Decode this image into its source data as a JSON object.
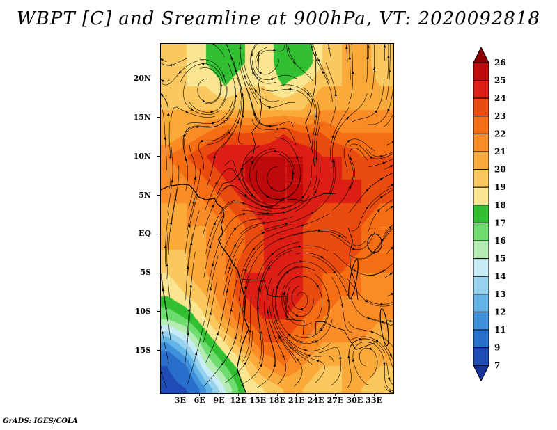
{
  "title": "WBPT [C] and Sreamline at 900hPa, VT: 2020092818",
  "credit": "GrADS: IGES/COLA",
  "chart_data": {
    "type": "heatmap",
    "field": "wet-bulb potential temperature (WBPT)",
    "units": "C",
    "level_hPa": 900,
    "valid_time": "2020092818",
    "overlay": "streamlines (900 hPa wind)",
    "lon_range": [
      0,
      36
    ],
    "lat_range": [
      -20.5,
      24.5
    ],
    "x_ticks": {
      "values": [
        3,
        6,
        9,
        12,
        15,
        18,
        21,
        24,
        27,
        30,
        33
      ],
      "labels": [
        "3E",
        "6E",
        "9E",
        "12E",
        "15E",
        "18E",
        "21E",
        "24E",
        "27E",
        "30E",
        "33E"
      ]
    },
    "y_ticks": {
      "values": [
        20,
        15,
        10,
        5,
        0,
        -5,
        -10,
        -15
      ],
      "labels": [
        "20N",
        "15N",
        "10N",
        "5N",
        "EQ",
        "5S",
        "10S",
        "15S"
      ]
    },
    "colorbar": {
      "boundaries": [
        7,
        9,
        11,
        12,
        13,
        14,
        15,
        16,
        17,
        18,
        19,
        20,
        21,
        22,
        23,
        24,
        25,
        26
      ],
      "labels_top_to_bottom": [
        "26",
        "25",
        "24",
        "23",
        "22",
        "21",
        "20",
        "19",
        "18",
        "17",
        "16",
        "15",
        "14",
        "13",
        "12",
        "11",
        "9",
        "7"
      ],
      "band_colors_low_to_high": [
        "#16329b",
        "#1e4cb4",
        "#2a6ecb",
        "#3f90da",
        "#64b4e6",
        "#96d2ee",
        "#c8ecf5",
        "#b4ecb4",
        "#6fdc6f",
        "#32c032",
        "#fae691",
        "#fac85f",
        "#faaa3a",
        "#fa8c28",
        "#f56e14",
        "#ea4b0f",
        "#dc1e14",
        "#be0a0a",
        "#8c0000"
      ]
    },
    "grid": {
      "note": "coarse estimate of shaded WBPT field read from the plot, degC",
      "lon": [
        1,
        4,
        7,
        10,
        13,
        16,
        19,
        22,
        25,
        28,
        31,
        34
      ],
      "lat": [
        22,
        19,
        16,
        13,
        10,
        7,
        4,
        1,
        -2,
        -5,
        -8,
        -11,
        -14,
        -17,
        -20
      ],
      "values": [
        [
          19,
          19,
          18,
          17,
          18,
          19,
          17,
          17,
          19,
          20,
          21,
          19
        ],
        [
          19,
          19,
          19,
          18,
          19,
          19,
          18,
          19,
          20,
          20,
          21,
          20
        ],
        [
          20,
          20,
          20,
          20,
          20,
          20,
          20,
          20,
          21,
          21,
          21,
          21
        ],
        [
          20,
          21,
          22,
          23,
          23,
          23,
          24,
          23,
          23,
          22,
          22,
          22
        ],
        [
          22,
          23,
          24,
          25,
          25,
          25,
          25,
          25,
          24,
          24,
          23,
          23
        ],
        [
          21,
          22,
          23,
          24,
          25,
          26,
          25,
          25,
          24,
          24,
          24,
          23
        ],
        [
          21,
          21,
          22,
          23,
          24,
          25,
          25,
          25,
          24,
          24,
          24,
          23
        ],
        [
          20,
          21,
          21,
          22,
          23,
          24,
          25,
          24,
          23,
          24,
          23,
          22
        ],
        [
          20,
          20,
          21,
          22,
          23,
          24,
          24,
          24,
          23,
          24,
          23,
          22
        ],
        [
          19,
          20,
          21,
          22,
          24,
          24,
          25,
          24,
          23,
          23,
          22,
          22
        ],
        [
          18,
          19,
          20,
          22,
          24,
          25,
          25,
          24,
          23,
          22,
          22,
          21
        ],
        [
          16,
          17,
          19,
          21,
          23,
          24,
          24,
          23,
          22,
          21,
          22,
          21
        ],
        [
          12,
          14,
          17,
          19,
          21,
          23,
          23,
          22,
          21,
          21,
          21,
          20
        ],
        [
          9,
          11,
          15,
          17,
          19,
          21,
          22,
          21,
          20,
          20,
          21,
          20
        ],
        [
          8,
          9,
          12,
          15,
          18,
          19,
          20,
          20,
          19,
          20,
          20,
          19
        ]
      ]
    },
    "map": {
      "coastline_lonlat": [
        [
          0,
          5.7
        ],
        [
          1.2,
          6.15
        ],
        [
          2.4,
          6.3
        ],
        [
          3.3,
          6.4
        ],
        [
          4.4,
          6.3
        ],
        [
          5.0,
          5.8
        ],
        [
          5.8,
          4.8
        ],
        [
          7.0,
          4.4
        ],
        [
          8.3,
          4.6
        ],
        [
          8.7,
          3.9
        ],
        [
          9.6,
          3.3
        ],
        [
          9.8,
          2.3
        ],
        [
          9.3,
          1.2
        ],
        [
          9.6,
          0.2
        ],
        [
          8.9,
          -0.7
        ],
        [
          9.4,
          -1.6
        ],
        [
          10.6,
          -2.9
        ],
        [
          11.2,
          -3.9
        ],
        [
          11.9,
          -4.7
        ],
        [
          12.3,
          -6.0
        ],
        [
          13.1,
          -8.6
        ],
        [
          12.9,
          -10.8
        ],
        [
          13.6,
          -12.2
        ],
        [
          12.6,
          -14.2
        ],
        [
          12.2,
          -15.6
        ],
        [
          11.8,
          -17.3
        ],
        [
          12.4,
          -18.9
        ],
        [
          13.2,
          -20.5
        ]
      ],
      "borders_lonlat": [
        [
          [
            8.6,
            4.9
          ],
          [
            9.6,
            6.5
          ],
          [
            11.0,
            6.8
          ],
          [
            12.0,
            7.6
          ],
          [
            12.8,
            8.9
          ],
          [
            14.2,
            9.9
          ],
          [
            14.6,
            11.6
          ],
          [
            14.1,
            13.1
          ],
          [
            15.3,
            14.4
          ],
          [
            15.6,
            16.4
          ],
          [
            15.0,
            20.0
          ],
          [
            15.2,
            23.5
          ]
        ],
        [
          [
            23.8,
            8.7
          ],
          [
            23.5,
            10.5
          ],
          [
            22.9,
            12.7
          ],
          [
            22.4,
            14.3
          ],
          [
            23.1,
            15.7
          ],
          [
            24.0,
            19.5
          ],
          [
            24.0,
            23.5
          ]
        ],
        [
          [
            16.1,
            3.6
          ],
          [
            17.4,
            3.6
          ],
          [
            18.6,
            4.3
          ],
          [
            20.6,
            4.5
          ],
          [
            22.2,
            4.2
          ],
          [
            23.4,
            4.6
          ],
          [
            25.3,
            5.2
          ],
          [
            27.1,
            5.2
          ]
        ],
        [
          [
            29.0,
            0.8
          ],
          [
            29.7,
            -0.9
          ],
          [
            29.2,
            -2.6
          ],
          [
            29.4,
            -4.4
          ],
          [
            30.3,
            -7.0
          ],
          [
            30.5,
            -8.5
          ]
        ],
        [
          [
            12.4,
            -5.8
          ],
          [
            14.0,
            -5.9
          ],
          [
            16.0,
            -6.0
          ],
          [
            16.6,
            -7.8
          ],
          [
            17.6,
            -8.1
          ],
          [
            19.4,
            -8.0
          ],
          [
            19.4,
            -11.0
          ],
          [
            22.2,
            -11.2
          ],
          [
            22.0,
            -13.0
          ],
          [
            24.0,
            -13.0
          ],
          [
            24.0,
            -11.3
          ],
          [
            25.3,
            -11.3
          ],
          [
            26.8,
            -12.0
          ],
          [
            28.4,
            -12.4
          ],
          [
            29.0,
            -13.4
          ],
          [
            30.2,
            -14.9
          ],
          [
            33.2,
            -14.0
          ]
        ]
      ],
      "lakes": [
        {
          "name": "lake-victoria",
          "center": [
            33.1,
            -1.2
          ],
          "rx_deg": 1.1,
          "ry_deg": 1.2,
          "rot": 0
        },
        {
          "name": "lake-tanganyika",
          "center": [
            29.8,
            -5.8
          ],
          "rx_deg": 0.5,
          "ry_deg": 2.6,
          "rot": 10
        },
        {
          "name": "lake-malawi",
          "center": [
            34.6,
            -12.0
          ],
          "rx_deg": 0.5,
          "ry_deg": 2.4,
          "rot": -8
        }
      ]
    },
    "flow_features": [
      "warm dark-red WBPT band (24-26C) stretched E-W near 7-13N",
      "secondary warm core (24-25C) over 5-12S, 13-25E",
      "cool pool (<13C) with strong diffluent fan of streamlines in the SW corner near 3-9E, 15-20S",
      "green cool patches (17-18C) along the northern edge near 9-12E and 19-22E",
      "closed streamline circulations near 8E/19N, 19E/6N and 21E/8S"
    ]
  }
}
